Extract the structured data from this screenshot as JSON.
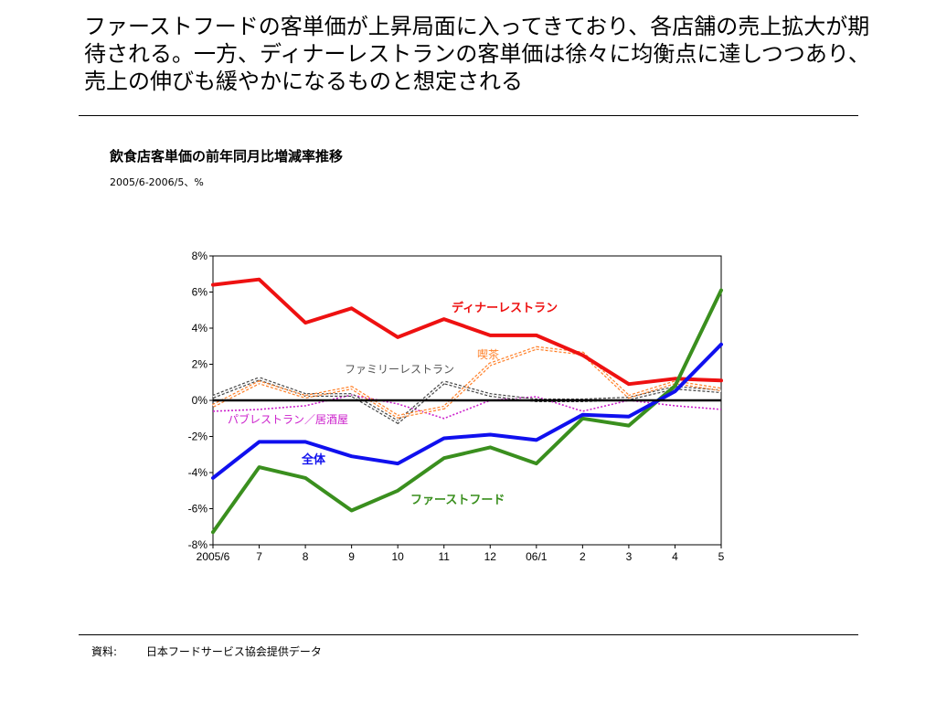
{
  "headline": "ファーストフードの客単価が上昇局面に入ってきており、各店舗の売上拡大が期待される。一方、ディナーレストランの客単価は徐々に均衡点に達しつつあり、売上の伸びも緩やかになるものと想定される",
  "source": {
    "label": "資料:",
    "text": "日本フードサービス協会提供データ"
  },
  "chart_data": {
    "type": "line",
    "title": "飲食店客単価の前年同月比増減率推移",
    "subtitle": "2005/6-2006/5、%",
    "categories": [
      "2005/6",
      "7",
      "8",
      "9",
      "10",
      "11",
      "12",
      "06/1",
      "2",
      "3",
      "4",
      "5"
    ],
    "ylim": [
      -8,
      8
    ],
    "yticks": [
      8,
      6,
      4,
      2,
      0,
      -2,
      -4,
      -6,
      -8
    ],
    "ytick_labels": [
      "8%",
      "6%",
      "4%",
      "2%",
      "0%",
      "-2%",
      "-4%",
      "-6%",
      "-8%"
    ],
    "grid": false,
    "legend": "inline labels",
    "series": [
      {
        "name": "ディナーレストラン",
        "color": "#ee1111",
        "style": "thick",
        "values": [
          6.4,
          6.7,
          4.3,
          5.1,
          3.5,
          4.5,
          3.6,
          3.6,
          2.5,
          0.9,
          1.2,
          1.1
        ]
      },
      {
        "name": "喫茶",
        "color": "#ff7f27",
        "style": "double",
        "values": [
          -0.3,
          1.0,
          0.2,
          0.7,
          -0.9,
          -0.4,
          2.0,
          2.9,
          2.6,
          0.2,
          1.0,
          0.6
        ]
      },
      {
        "name": "ファミリーレストラン",
        "color": "#444444",
        "style": "double",
        "values": [
          0.2,
          1.2,
          0.3,
          0.3,
          -1.2,
          1.0,
          0.3,
          0.0,
          0.0,
          0.1,
          0.7,
          0.5
        ]
      },
      {
        "name": "パブレストラン／居酒屋",
        "color": "#cc22cc",
        "style": "dotted",
        "values": [
          -0.6,
          -0.5,
          -0.3,
          0.3,
          -0.2,
          -1.0,
          0.0,
          0.2,
          -0.6,
          0.0,
          -0.3,
          -0.5
        ]
      },
      {
        "name": "全体",
        "color": "#1010ee",
        "style": "thick",
        "values": [
          -4.3,
          -2.3,
          -2.3,
          -3.1,
          -3.5,
          -2.1,
          -1.9,
          -2.2,
          -0.8,
          -0.9,
          0.5,
          3.1
        ]
      },
      {
        "name": "ファーストフード",
        "color": "#3a8f1e",
        "style": "thick",
        "values": [
          -7.3,
          -3.7,
          -4.3,
          -6.1,
          -5.0,
          -3.2,
          -2.6,
          -3.5,
          -1.0,
          -1.4,
          0.8,
          6.1
        ]
      }
    ]
  }
}
